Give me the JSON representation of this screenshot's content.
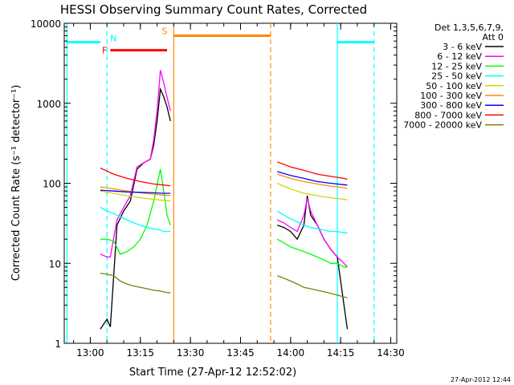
{
  "chart_data": {
    "type": "line",
    "title": "HESSI Observing Summary Count Rates, Corrected",
    "xlabel": "Start Time (27-Apr-12 12:52:02)",
    "ylabel": "Corrected Count Rate (s⁻¹ detector⁻¹)",
    "yscale": "log",
    "ylim": [
      1,
      10000
    ],
    "xlim_minutes": [
      12.87,
      14.53
    ],
    "x_ticks": [
      {
        "t": "13:00",
        "label": "13:00"
      },
      {
        "t": "13:15",
        "label": "13:15"
      },
      {
        "t": "13:30",
        "label": "13:30"
      },
      {
        "t": "13:45",
        "label": "13:45"
      },
      {
        "t": "14:00",
        "label": "14:00"
      },
      {
        "t": "14:15",
        "label": "14:15"
      },
      {
        "t": "14:30",
        "label": "14:30"
      }
    ],
    "y_ticks": [
      {
        "v": 1,
        "label": "1"
      },
      {
        "v": 10,
        "label": "10"
      },
      {
        "v": 100,
        "label": "100"
      },
      {
        "v": 1000,
        "label": "1000"
      },
      {
        "v": 10000,
        "label": "10000"
      }
    ],
    "legend": {
      "header": [
        "Det 1,3,5,6,7,9,",
        "Att 0"
      ],
      "placement": "right"
    },
    "series": [
      {
        "name": "3 - 6 keV",
        "color": "#000000",
        "segments": [
          {
            "x": [
              "13:03",
              "13:05",
              "13:06",
              "13:08",
              "13:10",
              "13:12",
              "13:14",
              "13:16",
              "13:18",
              "13:19",
              "13:20",
              "13:21",
              "13:22",
              "13:23",
              "13:24"
            ],
            "y": [
              1.5,
              2,
              1.6,
              30,
              45,
              60,
              150,
              180,
              200,
              300,
              600,
              1500,
              1200,
              900,
              600
            ]
          },
          {
            "x": [
              "13:56",
              "13:58",
              "14:00",
              "14:02",
              "14:04",
              "14:05",
              "14:06",
              "14:08",
              "14:10",
              "14:12",
              "14:14",
              "14:16",
              "14:17"
            ],
            "y": [
              30,
              28,
              25,
              20,
              30,
              70,
              40,
              30,
              20,
              15,
              12,
              3,
              1.5
            ]
          }
        ]
      },
      {
        "name": "6 - 12 keV",
        "color": "#ff00ff",
        "segments": [
          {
            "x": [
              "13:03",
              "13:05",
              "13:06",
              "13:08",
              "13:10",
              "13:12",
              "13:14",
              "13:16",
              "13:18",
              "13:19",
              "13:20",
              "13:21",
              "13:22",
              "13:23",
              "13:24"
            ],
            "y": [
              13,
              12,
              12,
              35,
              50,
              70,
              160,
              180,
              200,
              350,
              800,
              2600,
              1800,
              1200,
              800
            ]
          },
          {
            "x": [
              "13:56",
              "13:58",
              "14:00",
              "14:02",
              "14:04",
              "14:05",
              "14:06",
              "14:08",
              "14:10",
              "14:12",
              "14:14",
              "14:16",
              "14:17"
            ],
            "y": [
              35,
              32,
              28,
              25,
              40,
              65,
              45,
              30,
              20,
              15,
              12,
              10,
              9
            ]
          }
        ]
      },
      {
        "name": "12 - 25 keV",
        "color": "#00ff00",
        "segments": [
          {
            "x": [
              "13:03",
              "13:05",
              "13:07",
              "13:09",
              "13:11",
              "13:13",
              "13:15",
              "13:17",
              "13:19",
              "13:21",
              "13:22",
              "13:23",
              "13:24"
            ],
            "y": [
              20,
              20,
              19,
              13,
              14,
              16,
              20,
              30,
              60,
              150,
              80,
              40,
              30
            ]
          },
          {
            "x": [
              "13:56",
              "13:58",
              "14:00",
              "14:02",
              "14:04",
              "14:06",
              "14:08",
              "14:10",
              "14:12",
              "14:14",
              "14:16",
              "14:17"
            ],
            "y": [
              20,
              18,
              16,
              15,
              14,
              13,
              12,
              11,
              10,
              10,
              9,
              9
            ]
          }
        ]
      },
      {
        "name": "25 - 50 keV",
        "color": "#00ffff",
        "segments": [
          {
            "x": [
              "13:03",
              "13:05",
              "13:07",
              "13:09",
              "13:11",
              "13:13",
              "13:15",
              "13:17",
              "13:19",
              "13:21",
              "13:22",
              "13:23",
              "13:24"
            ],
            "y": [
              50,
              45,
              42,
              38,
              35,
              32,
              30,
              28,
              27,
              26,
              25,
              25,
              25
            ]
          },
          {
            "x": [
              "13:56",
              "13:58",
              "14:00",
              "14:02",
              "14:04",
              "14:06",
              "14:08",
              "14:10",
              "14:12",
              "14:14",
              "14:16",
              "14:17"
            ],
            "y": [
              45,
              40,
              36,
              33,
              30,
              28,
              27,
              26,
              25,
              25,
              24,
              24
            ]
          }
        ]
      },
      {
        "name": "50 - 100 keV",
        "color": "#d4d400",
        "segments": [
          {
            "x": [
              "13:03",
              "13:07",
              "13:11",
              "13:15",
              "13:19",
              "13:22",
              "13:24"
            ],
            "y": [
              80,
              75,
              70,
              66,
              63,
              61,
              60
            ]
          },
          {
            "x": [
              "13:56",
              "14:00",
              "14:04",
              "14:08",
              "14:12",
              "14:16",
              "14:17"
            ],
            "y": [
              100,
              85,
              75,
              70,
              66,
              63,
              62
            ]
          }
        ]
      },
      {
        "name": "100 - 300 keV",
        "color": "#ff8c00",
        "segments": [
          {
            "x": [
              "13:03",
              "13:07",
              "13:11",
              "13:15",
              "13:19",
              "13:22",
              "13:24"
            ],
            "y": [
              90,
              85,
              80,
              76,
              73,
              71,
              70
            ]
          },
          {
            "x": [
              "13:56",
              "14:00",
              "14:04",
              "14:08",
              "14:12",
              "14:16",
              "14:17"
            ],
            "y": [
              130,
              115,
              105,
              98,
              92,
              88,
              86
            ]
          }
        ]
      },
      {
        "name": "300 - 800 keV",
        "color": "#0000ff",
        "segments": [
          {
            "x": [
              "13:03",
              "13:07",
              "13:11",
              "13:15",
              "13:19",
              "13:22",
              "13:24"
            ],
            "y": [
              82,
              80,
              78,
              77,
              76,
              75,
              75
            ]
          },
          {
            "x": [
              "13:56",
              "14:00",
              "14:04",
              "14:08",
              "14:12",
              "14:16",
              "14:17"
            ],
            "y": [
              140,
              125,
              115,
              105,
              100,
              96,
              95
            ]
          }
        ]
      },
      {
        "name": "800 - 7000 keV",
        "color": "#ff0000",
        "segments": [
          {
            "x": [
              "13:03",
              "13:07",
              "13:11",
              "13:15",
              "13:19",
              "13:22",
              "13:24"
            ],
            "y": [
              155,
              130,
              115,
              105,
              98,
              95,
              93
            ]
          },
          {
            "x": [
              "13:56",
              "14:00",
              "14:04",
              "14:08",
              "14:12",
              "14:16",
              "14:17"
            ],
            "y": [
              185,
              160,
              145,
              130,
              122,
              115,
              112
            ]
          }
        ]
      },
      {
        "name": "7000 - 20000 keV",
        "color": "#808000",
        "segments": [
          {
            "x": [
              "13:03",
              "13:05",
              "13:07",
              "13:09",
              "13:11",
              "13:13",
              "13:15",
              "13:17",
              "13:19",
              "13:21",
              "13:22",
              "13:23",
              "13:24"
            ],
            "y": [
              7.5,
              7.3,
              7,
              6,
              5.5,
              5.2,
              5,
              4.8,
              4.6,
              4.5,
              4.4,
              4.3,
              4.3
            ]
          },
          {
            "x": [
              "13:56",
              "13:58",
              "14:00",
              "14:02",
              "14:04",
              "14:06",
              "14:08",
              "14:10",
              "14:12",
              "14:14",
              "14:16",
              "14:17"
            ],
            "y": [
              7,
              6.5,
              6,
              5.5,
              5,
              4.8,
              4.6,
              4.4,
              4.2,
              4,
              3.8,
              3.7
            ]
          }
        ]
      }
    ],
    "flag_bars": [
      {
        "label": "",
        "color": "#00ffff",
        "from": "12:53",
        "to": "13:03",
        "y": 5800
      },
      {
        "label": "N",
        "color": "#00ffff",
        "from": "",
        "to": "",
        "y": 6500
      },
      {
        "label": "F",
        "color": "#ff0000",
        "from": "13:06",
        "to": "13:23",
        "y": 4600
      },
      {
        "label": "S",
        "color": "#ff8c00",
        "from": "13:25",
        "to": "13:54",
        "y": 7000
      },
      {
        "label": "",
        "color": "#00ffff",
        "from": "14:14",
        "to": "14:25",
        "y": 5800
      }
    ],
    "vlines": [
      {
        "t": "12:53",
        "color": "#00ffff",
        "style": "solid"
      },
      {
        "t": "13:05",
        "color": "#00ffff",
        "style": "dashed"
      },
      {
        "t": "13:25",
        "color": "#ff8c00",
        "style": "solid"
      },
      {
        "t": "13:54",
        "color": "#ff8c00",
        "style": "dashed"
      },
      {
        "t": "14:14",
        "color": "#00ffff",
        "style": "solid"
      },
      {
        "t": "14:25",
        "color": "#00ffff",
        "style": "dashed"
      }
    ],
    "timestamp": "27-Apr-2012 12:44"
  }
}
